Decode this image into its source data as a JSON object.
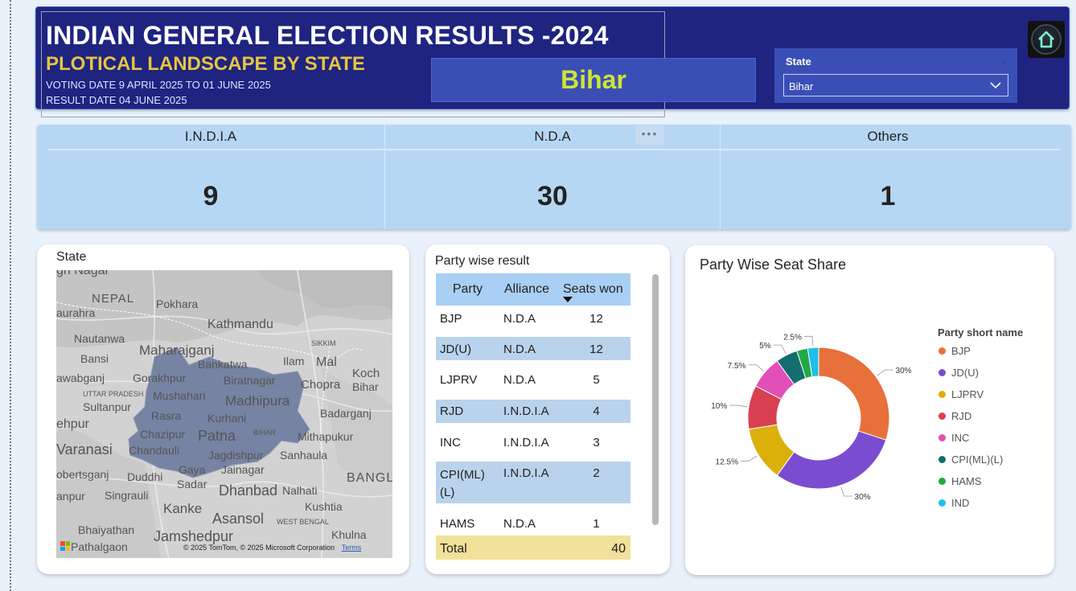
{
  "header": {
    "title": "INDIAN GENERAL ELECTION RESULTS -2024",
    "subtitle": "PLOTICAL LANDSCAPE BY STATE",
    "voting_date": "VOTING DATE 9 APRIL 2025 TO 01 JUNE 2025",
    "result_date": "RESULT DATE 04 JUNE 2025",
    "selected_state": "Bihar"
  },
  "slicer": {
    "label": "State",
    "value": "Bihar",
    "icon": "chevron-down-icon"
  },
  "home": {
    "icon": "home-icon"
  },
  "kpi": [
    {
      "label": "I.N.D.I.A",
      "value": "9"
    },
    {
      "label": "N.D.A",
      "value": "30"
    },
    {
      "label": "Others",
      "value": "1"
    }
  ],
  "kpi_more": "•••",
  "map_panel": {
    "title": "State",
    "labels": [
      "gh Nagar",
      "NEPAL",
      "Pokhara",
      "aurahra",
      "Kathmandu",
      "Nautanwa",
      "SIKKIM",
      "Bansi",
      "Maharajganj",
      "Ilam",
      "Mal",
      "Bankatwa",
      "awabganj",
      "Gorakhpur",
      "Biratnagar",
      "Koch",
      "Bihar",
      "Chopra",
      "UTTAR PRADESH",
      "Mushahari",
      "Madhipura",
      "Sultanpur",
      "Badarganj",
      "Rasra",
      "Kurhani",
      "ehpur",
      "Chazipur",
      "BIHAR",
      "Mithapukur",
      "Patna",
      "Varanasi",
      "Chandauli",
      "Jagdishpur",
      "Sanhaula",
      "Gaya",
      "Jainagar",
      "obertsganj",
      "Duddhi",
      "Sadar",
      "Dhanbad",
      "Nalhati",
      "BANGL",
      "anpur",
      "Singrauli",
      "Kanke",
      "Kushtia",
      "Asansol",
      "WEST BENGAL",
      "Bhaiyathan",
      "Jamshedpur",
      "Khulna",
      "Pathalgaon"
    ],
    "attribution": "© 2025 TomTom, © 2025 Microsoft Corporation",
    "terms": "Terms",
    "microsoft_logo_colors": [
      "#f25022",
      "#7fba00",
      "#00a4ef",
      "#ffb900"
    ],
    "highlight_color": "#6f7da0"
  },
  "table_panel": {
    "title": "Party wise result",
    "columns": [
      "Party",
      "Alliance",
      "Seats won"
    ],
    "sort_icon": "sort-desc-icon",
    "rows": [
      {
        "party": "BJP",
        "alliance": "N.D.A",
        "seats": "12"
      },
      {
        "party": "JD(U)",
        "alliance": "N.D.A",
        "seats": "12"
      },
      {
        "party": "LJPRV",
        "alliance": "N.D.A",
        "seats": "5"
      },
      {
        "party": "RJD",
        "alliance": "I.N.D.I.A",
        "seats": "4"
      },
      {
        "party": "INC",
        "alliance": "I.N.D.I.A",
        "seats": "3"
      },
      {
        "party": "CPI(ML)(L)",
        "alliance": "I.N.D.I.A",
        "seats": "2"
      },
      {
        "party": "HAMS",
        "alliance": "N.D.A",
        "seats": "1"
      }
    ],
    "total_label": "Total",
    "total_value": "40"
  },
  "chart_panel": {
    "title": "Party Wise Seat Share",
    "legend_title": "Party short name"
  },
  "chart_data": {
    "type": "pie",
    "variant": "donut",
    "title": "Party Wise Seat Share",
    "legend_title": "Party short name",
    "legend_position": "right",
    "categories": [
      "BJP",
      "JD(U)",
      "LJPRV",
      "RJD",
      "INC",
      "CPI(ML)(L)",
      "HAMS",
      "IND"
    ],
    "values": [
      30,
      30,
      12.5,
      10,
      7.5,
      5,
      2.5,
      2.5
    ],
    "labels": [
      "30%",
      "30%",
      "12.5%",
      "10%",
      "7.5%",
      "5%",
      "",
      "2.5%"
    ],
    "colors": [
      "#e8703a",
      "#7b4ccf",
      "#dcb00a",
      "#d9404f",
      "#e24fb9",
      "#146d6f",
      "#22a845",
      "#1fbfe8"
    ]
  },
  "colors": {
    "header_bg": "#1e2480",
    "accent_title": "#e7c441",
    "state_text": "#cfe434",
    "kpi_bg": "#b5d7f3",
    "page_bg": "#e9f1fb"
  }
}
